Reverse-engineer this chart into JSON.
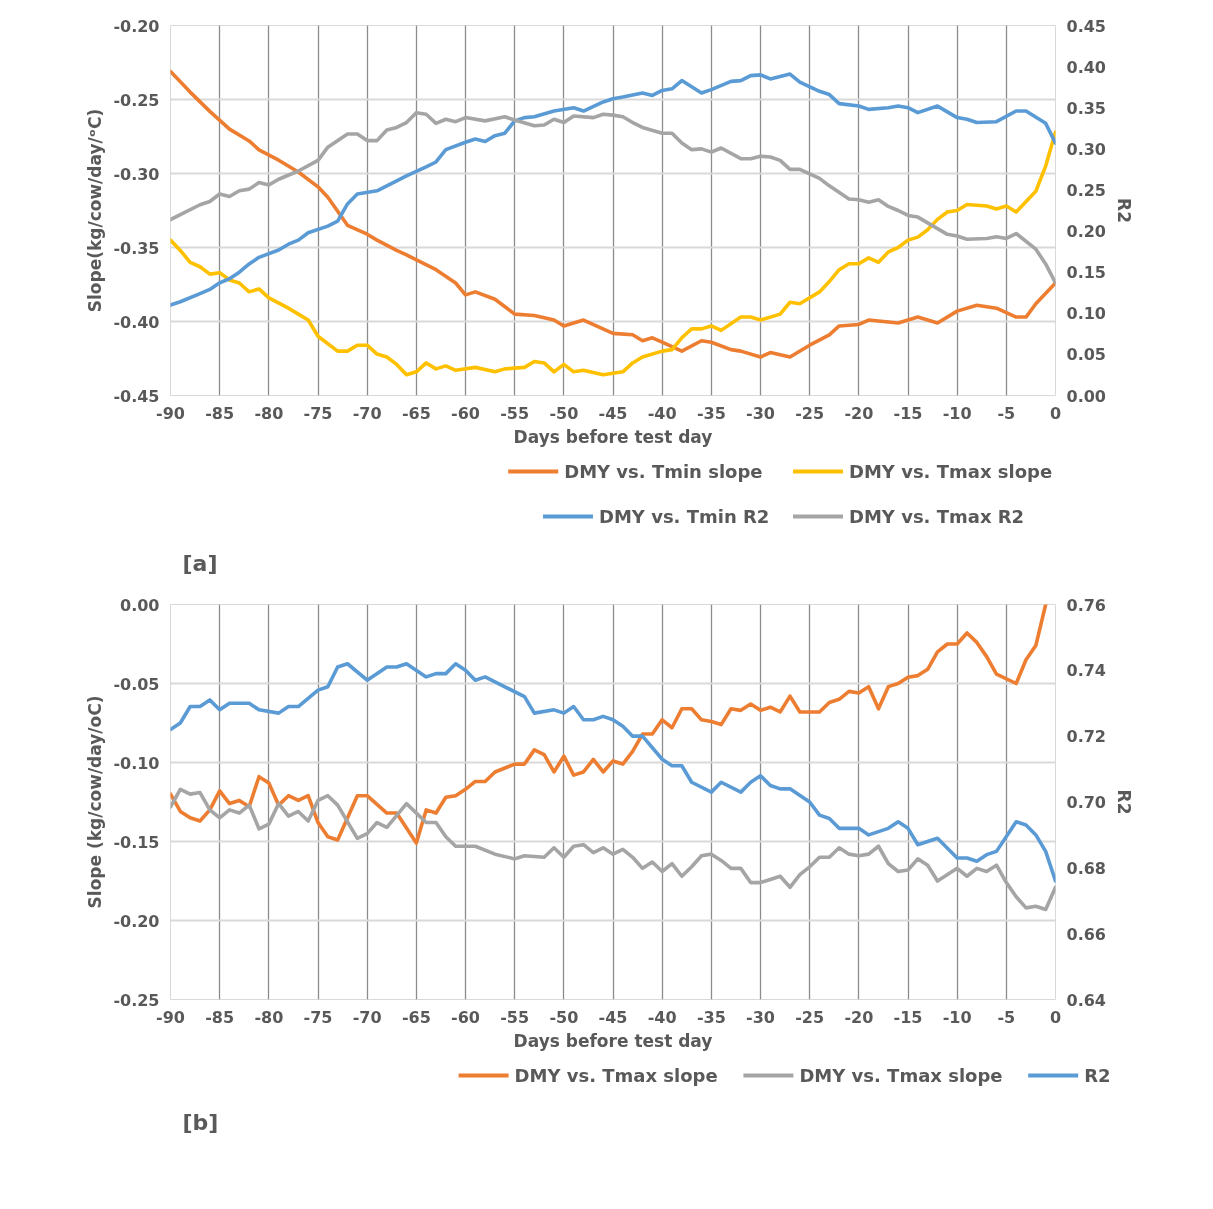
{
  "chart_data": [
    {
      "type": "line",
      "xlabel": "Days before test day",
      "ylabel": "Slope(kg/cow/day/ᵒC)",
      "y2label": "R2",
      "annotations": [
        "[a]"
      ],
      "grid": true,
      "legend": "bottom",
      "line_style": "solid",
      "xlim": [
        -90,
        0
      ],
      "xticks": [
        -90,
        -85,
        -80,
        -75,
        -70,
        -65,
        -60,
        -55,
        -50,
        -45,
        -40,
        -35,
        -30,
        -25,
        -20,
        -15,
        -10,
        -5,
        0
      ],
      "ylim": [
        -0.45,
        -0.2
      ],
      "yticks": [
        -0.45,
        {
          "value": -0.4,
          "label": "-0.40"
        },
        -0.35,
        {
          "value": -0.3,
          "label": "-0.30"
        },
        -0.25,
        {
          "value": -0.2,
          "label": "-0.20"
        }
      ],
      "y2lim": [
        0,
        0.45
      ],
      "y2ticks": [
        {
          "value": 0,
          "label": "0.00"
        },
        0.05,
        {
          "value": 0.1,
          "label": "0.10"
        },
        0.15,
        {
          "value": 0.2,
          "label": "0.20"
        },
        0.25,
        {
          "value": 0.3,
          "label": "0.30"
        },
        0.35,
        {
          "value": 0.4,
          "label": "0.40"
        },
        0.45
      ],
      "series": [
        {
          "name": "DMY vs. Tmin slope",
          "color": "#ed7d31",
          "x": [
            -90,
            -88,
            -86,
            -84,
            -82,
            -81,
            -79,
            -77,
            -75,
            -74,
            -72,
            -70,
            -69,
            -67,
            -66,
            -63,
            -61,
            -60,
            -59,
            -57,
            -55,
            -53,
            -51,
            -50,
            -48,
            -45,
            -43,
            -42,
            -41,
            -40,
            -38,
            -36,
            -35,
            -33,
            -32,
            -30,
            -29,
            -27,
            -25,
            -23,
            -22,
            -20,
            -19,
            -16,
            -14,
            -12,
            -10,
            -8,
            -6,
            -4,
            -3,
            -2,
            0
          ],
          "values": [
            -0.231,
            -0.245,
            -0.258,
            -0.27,
            -0.278,
            -0.284,
            -0.291,
            -0.299,
            -0.309,
            -0.316,
            -0.335,
            -0.341,
            -0.345,
            -0.352,
            -0.355,
            -0.365,
            -0.374,
            -0.382,
            -0.38,
            -0.385,
            -0.395,
            -0.396,
            -0.399,
            -0.403,
            -0.399,
            -0.408,
            -0.409,
            -0.413,
            -0.411,
            -0.414,
            -0.42,
            -0.413,
            -0.414,
            -0.419,
            -0.42,
            -0.424,
            -0.421,
            -0.424,
            -0.416,
            -0.409,
            -0.403,
            -0.402,
            -0.399,
            -0.401,
            -0.397,
            -0.401,
            -0.393,
            -0.389,
            -0.391,
            -0.397,
            -0.397,
            -0.388,
            -0.374
          ]
        },
        {
          "name": "DMY vs. Tmax slope",
          "color": "#ffc000",
          "x": [
            -90,
            -89,
            -88,
            -87,
            -86,
            -85,
            -84,
            -83,
            -82,
            -81,
            -80,
            -78,
            -77,
            -76,
            -75,
            -73,
            -72,
            -71,
            -70,
            -69,
            -68,
            -67,
            -66,
            -65,
            -64,
            -63,
            -62,
            -61,
            -59,
            -57,
            -56,
            -54,
            -53,
            -52,
            -51,
            -50,
            -49,
            -48,
            -46,
            -44,
            -43,
            -42,
            -40,
            -39,
            -38,
            -37,
            -36,
            -35,
            -34,
            -32,
            -31,
            -30,
            -28,
            -27,
            -26,
            -24,
            -23,
            -22,
            -21,
            -20,
            -19,
            -18,
            -17,
            -16,
            -15,
            -14,
            -13,
            -12,
            -11,
            -10,
            -9,
            -7,
            -6,
            -5,
            -4,
            -2,
            -1,
            0
          ],
          "values": [
            -0.345,
            -0.352,
            -0.36,
            -0.363,
            -0.368,
            -0.367,
            -0.372,
            -0.374,
            -0.38,
            -0.378,
            -0.384,
            -0.391,
            -0.395,
            -0.399,
            -0.41,
            -0.42,
            -0.42,
            -0.416,
            -0.416,
            -0.422,
            -0.424,
            -0.429,
            -0.436,
            -0.434,
            -0.428,
            -0.432,
            -0.43,
            -0.433,
            -0.431,
            -0.434,
            -0.432,
            -0.431,
            -0.427,
            -0.428,
            -0.434,
            -0.429,
            -0.434,
            -0.433,
            -0.436,
            -0.434,
            -0.428,
            -0.424,
            -0.42,
            -0.419,
            -0.411,
            -0.405,
            -0.405,
            -0.403,
            -0.406,
            -0.397,
            -0.397,
            -0.399,
            -0.395,
            -0.387,
            -0.388,
            -0.38,
            -0.373,
            -0.365,
            -0.361,
            -0.361,
            -0.357,
            -0.36,
            -0.353,
            -0.35,
            -0.345,
            -0.343,
            -0.338,
            -0.331,
            -0.326,
            -0.325,
            -0.321,
            -0.322,
            -0.324,
            -0.322,
            -0.326,
            -0.312,
            -0.295,
            -0.272
          ]
        },
        {
          "name": "DMY vs. Tmin R2",
          "color": "#5b9bd5",
          "axis": "y2",
          "x": [
            -90,
            -89,
            -87,
            -86,
            -85,
            -84,
            -83,
            -82,
            -81,
            -79,
            -78,
            -77,
            -76,
            -74,
            -73,
            -72,
            -71,
            -69,
            -67,
            -66,
            -64,
            -63,
            -62,
            -60,
            -59,
            -58,
            -57,
            -56,
            -55,
            -54,
            -53,
            -51,
            -49,
            -48,
            -46,
            -45,
            -44,
            -42,
            -41,
            -40,
            -39,
            -38,
            -36,
            -35,
            -33,
            -32,
            -31,
            -30,
            -29,
            -27,
            -26,
            -24,
            -23,
            -22,
            -20,
            -19,
            -17,
            -16,
            -15,
            -14,
            -12,
            -10,
            -9,
            -8,
            -6,
            -4,
            -3,
            -1,
            0
          ],
          "values": [
            0.11,
            0.114,
            0.124,
            0.129,
            0.137,
            0.142,
            0.15,
            0.16,
            0.168,
            0.177,
            0.184,
            0.189,
            0.198,
            0.206,
            0.212,
            0.233,
            0.245,
            0.249,
            0.261,
            0.267,
            0.278,
            0.284,
            0.299,
            0.308,
            0.312,
            0.309,
            0.316,
            0.319,
            0.334,
            0.338,
            0.339,
            0.346,
            0.35,
            0.346,
            0.357,
            0.361,
            0.363,
            0.368,
            0.365,
            0.371,
            0.373,
            0.383,
            0.368,
            0.372,
            0.382,
            0.383,
            0.389,
            0.39,
            0.385,
            0.391,
            0.381,
            0.37,
            0.366,
            0.355,
            0.352,
            0.348,
            0.35,
            0.352,
            0.35,
            0.344,
            0.352,
            0.338,
            0.336,
            0.332,
            0.333,
            0.346,
            0.346,
            0.331,
            0.307
          ]
        },
        {
          "name": "DMY vs. Tmax R2",
          "color": "#a5a5a5",
          "axis": "y2",
          "x": [
            -90,
            -89,
            -87,
            -86,
            -85,
            -84,
            -83,
            -82,
            -81,
            -80,
            -79,
            -77,
            -75,
            -74,
            -72,
            -71,
            -70,
            -69,
            -68,
            -67,
            -66,
            -65,
            -64,
            -63,
            -62,
            -61,
            -60,
            -58,
            -56,
            -55,
            -53,
            -52,
            -51,
            -50,
            -49,
            -47,
            -46,
            -45,
            -44,
            -43,
            -42,
            -40,
            -39,
            -38,
            -37,
            -36,
            -35,
            -34,
            -32,
            -31,
            -30,
            -29,
            -28,
            -27,
            -26,
            -24,
            -23,
            -21,
            -20,
            -19,
            -18,
            -17,
            -16,
            -15,
            -14,
            -13,
            -11,
            -10,
            -9,
            -7,
            -6,
            -5,
            -4,
            -2,
            -1,
            0
          ],
          "values": [
            0.214,
            0.22,
            0.232,
            0.236,
            0.245,
            0.242,
            0.249,
            0.251,
            0.259,
            0.256,
            0.263,
            0.273,
            0.286,
            0.302,
            0.318,
            0.318,
            0.31,
            0.31,
            0.323,
            0.326,
            0.332,
            0.344,
            0.342,
            0.331,
            0.336,
            0.333,
            0.338,
            0.334,
            0.339,
            0.335,
            0.328,
            0.329,
            0.336,
            0.332,
            0.34,
            0.338,
            0.342,
            0.341,
            0.339,
            0.332,
            0.326,
            0.319,
            0.319,
            0.307,
            0.299,
            0.3,
            0.296,
            0.301,
            0.288,
            0.288,
            0.291,
            0.29,
            0.286,
            0.275,
            0.275,
            0.264,
            0.255,
            0.239,
            0.238,
            0.235,
            0.238,
            0.23,
            0.225,
            0.219,
            0.217,
            0.21,
            0.196,
            0.194,
            0.19,
            0.191,
            0.193,
            0.191,
            0.197,
            0.178,
            0.16,
            0.137
          ]
        }
      ]
    },
    {
      "type": "line",
      "xlabel": "Days before test day",
      "ylabel": "Slope (kg/cow/day/oC)",
      "y2label": "R2",
      "annotations": [
        "[b]"
      ],
      "grid": true,
      "legend": "bottom",
      "line_style": "solid",
      "xlim": [
        -90,
        0
      ],
      "xticks": [
        -90,
        -85,
        -80,
        -75,
        -70,
        -65,
        -60,
        -55,
        -50,
        -45,
        -40,
        -35,
        -30,
        -25,
        -20,
        -15,
        -10,
        -5,
        0
      ],
      "ylim": [
        -0.25,
        0
      ],
      "yticks": [
        -0.25,
        {
          "value": -0.2,
          "label": "-0.20"
        },
        -0.15,
        {
          "value": -0.1,
          "label": "-0.10"
        },
        -0.05,
        {
          "value": 0,
          "label": "0.00"
        }
      ],
      "y2lim": [
        0.64,
        0.76
      ],
      "y2ticks": [
        0.64,
        0.66,
        0.68,
        {
          "value": 0.7,
          "label": "0.70"
        },
        0.72,
        0.74,
        0.76
      ],
      "series": [
        {
          "name": "DMY vs. Tmax slope",
          "color": "#ed7d31",
          "x": [
            -90,
            -89,
            -88,
            -87,
            -86,
            -85,
            -84,
            -83,
            -82,
            -81,
            -80,
            -79,
            -78,
            -77,
            -76,
            -75,
            -74,
            -73,
            -71,
            -70,
            -68,
            -67,
            -65,
            -64,
            -63,
            -62,
            -61,
            -60,
            -59,
            -58,
            -57,
            -55,
            -54,
            -53,
            -52,
            -51,
            -50,
            -49,
            -48,
            -47,
            -46,
            -45,
            -44,
            -43,
            -42,
            -41,
            -40,
            -39,
            -38,
            -37,
            -36,
            -35,
            -34,
            -33,
            -32,
            -31,
            -30,
            -29,
            -28,
            -27,
            -26,
            -24,
            -23,
            -22,
            -21,
            -20,
            -19,
            -18,
            -17,
            -16,
            -15,
            -14,
            -13,
            -12,
            -11,
            -10,
            -9,
            -8,
            -7,
            -6,
            -4,
            -3,
            -2,
            -1
          ],
          "values": [
            -0.12,
            -0.131,
            -0.135,
            -0.137,
            -0.13,
            -0.118,
            -0.126,
            -0.124,
            -0.128,
            -0.109,
            -0.113,
            -0.127,
            -0.121,
            -0.124,
            -0.121,
            -0.138,
            -0.147,
            -0.149,
            -0.121,
            -0.121,
            -0.132,
            -0.132,
            -0.151,
            -0.13,
            -0.132,
            -0.122,
            -0.121,
            -0.117,
            -0.112,
            -0.112,
            -0.106,
            -0.101,
            -0.101,
            -0.092,
            -0.095,
            -0.106,
            -0.096,
            -0.108,
            -0.106,
            -0.098,
            -0.106,
            -0.099,
            -0.101,
            -0.093,
            -0.082,
            -0.082,
            -0.073,
            -0.078,
            -0.066,
            -0.066,
            -0.073,
            -0.074,
            -0.076,
            -0.066,
            -0.067,
            -0.063,
            -0.067,
            -0.065,
            -0.068,
            -0.058,
            -0.068,
            -0.068,
            -0.062,
            -0.06,
            -0.055,
            -0.056,
            -0.052,
            -0.066,
            -0.052,
            -0.05,
            -0.046,
            -0.045,
            -0.041,
            -0.03,
            -0.025,
            -0.025,
            -0.018,
            -0.024,
            -0.033,
            -0.044,
            -0.05,
            -0.035,
            -0.026,
            0
          ]
        },
        {
          "name": "DMY vs. Tmax slope",
          "color": "#a5a5a5",
          "x": [
            -90,
            -89,
            -88,
            -87,
            -86,
            -85,
            -84,
            -83,
            -82,
            -81,
            -80,
            -79,
            -78,
            -77,
            -76,
            -75,
            -74,
            -73,
            -71,
            -70,
            -69,
            -68,
            -66,
            -64,
            -63,
            -62,
            -61,
            -59,
            -57,
            -55,
            -54,
            -52,
            -51,
            -50,
            -49,
            -48,
            -47,
            -46,
            -45,
            -44,
            -43,
            -42,
            -41,
            -40,
            -39,
            -38,
            -37,
            -36,
            -35,
            -34,
            -33,
            -32,
            -31,
            -30,
            -29,
            -28,
            -27,
            -26,
            -25,
            -24,
            -23,
            -22,
            -21,
            -20,
            -19,
            -18,
            -17,
            -16,
            -15,
            -14,
            -13,
            -12,
            -10,
            -9,
            -8,
            -7,
            -6,
            -5,
            -4,
            -3,
            -2,
            -1,
            0
          ],
          "values": [
            -0.128,
            -0.117,
            -0.12,
            -0.119,
            -0.13,
            -0.135,
            -0.13,
            -0.132,
            -0.127,
            -0.142,
            -0.139,
            -0.126,
            -0.134,
            -0.131,
            -0.137,
            -0.124,
            -0.121,
            -0.127,
            -0.148,
            -0.145,
            -0.138,
            -0.141,
            -0.126,
            -0.138,
            -0.138,
            -0.147,
            -0.153,
            -0.153,
            -0.158,
            -0.161,
            -0.159,
            -0.16,
            -0.154,
            -0.16,
            -0.153,
            -0.152,
            -0.157,
            -0.154,
            -0.158,
            -0.155,
            -0.16,
            -0.167,
            -0.163,
            -0.169,
            -0.164,
            -0.172,
            -0.166,
            -0.159,
            -0.158,
            -0.162,
            -0.167,
            -0.167,
            -0.176,
            -0.176,
            -0.174,
            -0.172,
            -0.179,
            -0.171,
            -0.166,
            -0.16,
            -0.16,
            -0.154,
            -0.158,
            -0.159,
            -0.158,
            -0.153,
            -0.164,
            -0.169,
            -0.168,
            -0.161,
            -0.165,
            -0.175,
            -0.167,
            -0.172,
            -0.167,
            -0.169,
            -0.165,
            -0.176,
            -0.185,
            -0.192,
            -0.191,
            -0.193,
            -0.179
          ]
        },
        {
          "name": "R2",
          "color": "#5b9bd5",
          "axis": "y2",
          "x": [
            -90,
            -89,
            -88,
            -87,
            -86,
            -85,
            -84,
            -83,
            -82,
            -81,
            -79,
            -78,
            -77,
            -75,
            -74,
            -73,
            -72,
            -70,
            -68,
            -67,
            -66,
            -64,
            -63,
            -62,
            -61,
            -60,
            -59,
            -58,
            -56,
            -54,
            -53,
            -51,
            -50,
            -49,
            -48,
            -47,
            -46,
            -45,
            -44,
            -43,
            -42,
            -40,
            -39,
            -38,
            -37,
            -35,
            -34,
            -32,
            -31,
            -30,
            -29,
            -28,
            -27,
            -25,
            -24,
            -23,
            -22,
            -20,
            -19,
            -17,
            -16,
            -15,
            -14,
            -12,
            -10,
            -9,
            -8,
            -7,
            -6,
            -4,
            -3,
            -2,
            -1,
            0
          ],
          "values": [
            0.722,
            0.724,
            0.729,
            0.729,
            0.731,
            0.728,
            0.73,
            0.73,
            0.73,
            0.728,
            0.727,
            0.729,
            0.729,
            0.734,
            0.735,
            0.741,
            0.742,
            0.737,
            0.741,
            0.741,
            0.742,
            0.738,
            0.739,
            0.739,
            0.742,
            0.74,
            0.737,
            0.738,
            0.735,
            0.732,
            0.727,
            0.728,
            0.727,
            0.729,
            0.725,
            0.725,
            0.726,
            0.725,
            0.723,
            0.72,
            0.72,
            0.713,
            0.711,
            0.711,
            0.706,
            0.703,
            0.706,
            0.703,
            0.706,
            0.708,
            0.705,
            0.704,
            0.704,
            0.7,
            0.696,
            0.695,
            0.692,
            0.692,
            0.69,
            0.692,
            0.694,
            0.692,
            0.687,
            0.689,
            0.683,
            0.683,
            0.682,
            0.684,
            0.685,
            0.694,
            0.693,
            0.69,
            0.685,
            0.676
          ]
        }
      ]
    }
  ]
}
